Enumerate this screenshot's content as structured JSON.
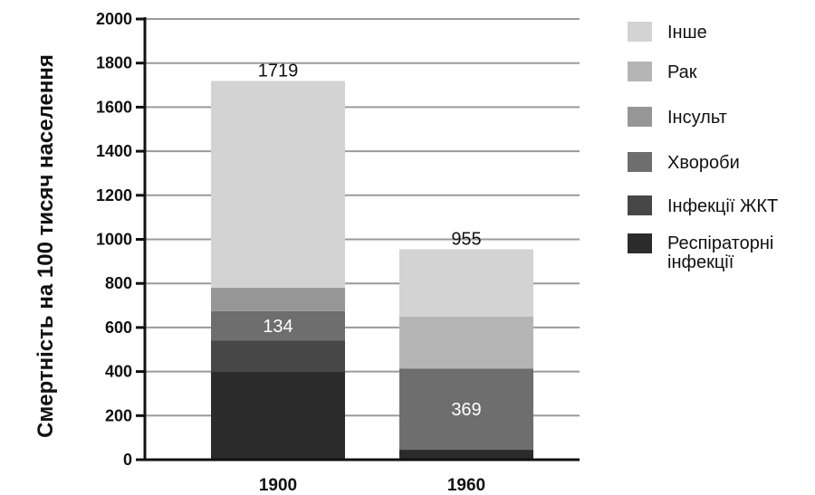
{
  "chart_data": {
    "type": "bar",
    "stacked": true,
    "title": "",
    "xlabel": "",
    "ylabel": "Смертність на 100 тисяч населення",
    "ylim": [
      0,
      2000
    ],
    "yticks": [
      0,
      200,
      400,
      600,
      800,
      1000,
      1200,
      1400,
      1600,
      1800,
      2000
    ],
    "grid": true,
    "legend_position": "right",
    "categories": [
      "1900",
      "1960"
    ],
    "totals": [
      1719,
      955
    ],
    "series": [
      {
        "name": "Респіраторні інфекції",
        "values": [
          400,
          45
        ],
        "color": "#2b2b2b"
      },
      {
        "name": "Інфекції ЖКТ",
        "values": [
          140,
          0
        ],
        "color": "#474747"
      },
      {
        "name": "Хвороби",
        "values": [
          134,
          369
        ],
        "color": "#6e6e6e"
      },
      {
        "name": "Інсульт",
        "values": [
          106,
          0
        ],
        "color": "#969696"
      },
      {
        "name": "Рак",
        "values": [
          0,
          235
        ],
        "color": "#b5b5b5"
      },
      {
        "name": "Інше",
        "values": [
          939,
          306
        ],
        "color": "#d3d3d3"
      }
    ],
    "bar_labels": [
      {
        "category_index": 0,
        "series_index": 2,
        "text": "134"
      },
      {
        "category_index": 1,
        "series_index": 2,
        "text": "369"
      }
    ],
    "legend": [
      {
        "label": "Інше",
        "color": "#d3d3d3"
      },
      {
        "label": "Рак",
        "color": "#b5b5b5"
      },
      {
        "label": "Інсульт",
        "color": "#969696"
      },
      {
        "label": "Хвороби",
        "color": "#6e6e6e"
      },
      {
        "label": "Інфекції ЖКТ",
        "color": "#474747"
      },
      {
        "label_lines": [
          "Респіраторні",
          "інфекції"
        ],
        "color": "#2b2b2b"
      }
    ]
  }
}
